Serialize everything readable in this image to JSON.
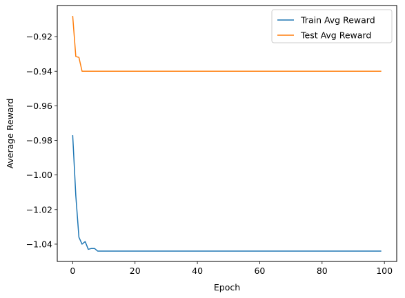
{
  "chart_data": {
    "type": "line",
    "xlabel": "Epoch",
    "ylabel": "Average Reward",
    "xlim": [
      -4.95,
      103.95
    ],
    "ylim": [
      -1.05,
      -0.902
    ],
    "x_ticks": [
      0,
      20,
      40,
      60,
      80,
      100
    ],
    "x_tick_labels": [
      "0",
      "20",
      "40",
      "60",
      "80",
      "100"
    ],
    "y_ticks": [
      -1.04,
      -1.02,
      -1.0,
      -0.98,
      -0.96,
      -0.94,
      -0.92
    ],
    "y_tick_labels": [
      "−1.04",
      "−1.02",
      "−1.00",
      "−0.98",
      "−0.96",
      "−0.94",
      "−0.92"
    ],
    "grid": false,
    "legend": {
      "placement": "top-right"
    },
    "series": [
      {
        "name": "Train Avg Reward",
        "color": "#1f77b4",
        "points": [
          [
            0,
            -0.977
          ],
          [
            1,
            -1.012
          ],
          [
            2,
            -1.036
          ],
          [
            3,
            -1.04
          ],
          [
            4,
            -1.0385
          ],
          [
            5,
            -1.043
          ],
          [
            6,
            -1.0425
          ],
          [
            7,
            -1.0425
          ],
          [
            8,
            -1.044
          ],
          [
            99,
            -1.044
          ]
        ]
      },
      {
        "name": "Test Avg Reward",
        "color": "#ff7f0e",
        "points": [
          [
            0,
            -0.908
          ],
          [
            1,
            -0.9315
          ],
          [
            2,
            -0.932
          ],
          [
            3,
            -0.94
          ],
          [
            99,
            -0.94
          ]
        ]
      }
    ]
  }
}
